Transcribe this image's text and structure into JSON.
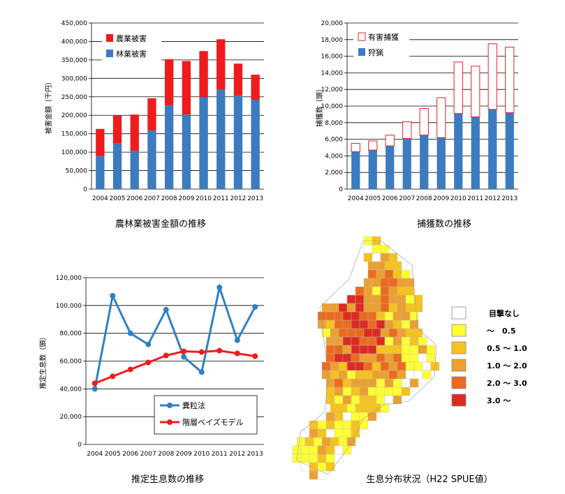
{
  "chart_data": [
    {
      "type": "bar",
      "stacked": true,
      "categories": [
        "2004",
        "2005",
        "2006",
        "2007",
        "2008",
        "2009",
        "2010",
        "2011",
        "2012",
        "2013"
      ],
      "series": [
        {
          "name": "林業被害",
          "color": "#3c7bbf",
          "values": [
            90000,
            124000,
            104000,
            159000,
            227000,
            202000,
            250000,
            269000,
            253000,
            242000
          ]
        },
        {
          "name": "農業被害",
          "color": "#ee1c1c",
          "values": [
            73000,
            75000,
            98000,
            87000,
            125000,
            145000,
            124000,
            137000,
            87000,
            68000
          ]
        }
      ],
      "legend_order": [
        "農業被害",
        "林業被害"
      ],
      "ylim": [
        0,
        450000
      ],
      "yticks": [
        "0",
        "50,000",
        "100,000",
        "150,000",
        "200,000",
        "250,000",
        "300,000",
        "350,000",
        "400,000",
        "450,000"
      ],
      "ylabel": "被害金額（千円）",
      "caption": "農林業被害金額の推移"
    },
    {
      "type": "bar",
      "stacked": true,
      "categories": [
        "2004",
        "2005",
        "2006",
        "2007",
        "2008",
        "2009",
        "2010",
        "2011",
        "2012",
        "2013"
      ],
      "series": [
        {
          "name": "狩猟",
          "color": "#3c7bbf",
          "values": [
            4500,
            4700,
            5200,
            6100,
            6500,
            6200,
            9100,
            8700,
            9600,
            9200
          ]
        },
        {
          "name": "有害捕獲",
          "color": "#ffffff",
          "stroke": "#ee1c1c",
          "values": [
            1000,
            1100,
            1300,
            2000,
            3200,
            4800,
            6200,
            6100,
            7900,
            7900
          ]
        }
      ],
      "legend_order": [
        "有害捕獲",
        "狩猟"
      ],
      "ylim": [
        0,
        20000
      ],
      "yticks": [
        "0",
        "2,000",
        "4,000",
        "6,000",
        "8,000",
        "10,000",
        "12,000",
        "14,000",
        "16,000",
        "18,000",
        "20,000"
      ],
      "ylabel": "捕獲数（頭）",
      "caption": "捕獲数の推移"
    },
    {
      "type": "line",
      "categories": [
        "2004",
        "2005",
        "2006",
        "2007",
        "2008",
        "2009",
        "2010",
        "2011",
        "2012",
        "2013"
      ],
      "series": [
        {
          "name": "糞粒法",
          "color": "#2f80c4",
          "values": [
            40000,
            107000,
            80000,
            72000,
            97000,
            63000,
            52000,
            113000,
            75000,
            99000
          ]
        },
        {
          "name": "階層ベイズモデル",
          "color": "#ee1c1c",
          "values": [
            44000,
            49000,
            54000,
            59000,
            64000,
            67000,
            66500,
            67500,
            65500,
            63500
          ]
        }
      ],
      "ylim": [
        0,
        120000
      ],
      "yticks": [
        "0",
        "20,000",
        "40,000",
        "60,000",
        "80,000",
        "100,000",
        "120,000"
      ],
      "ylabel": "推定生息数（頭）",
      "caption": "推定生息数の推移"
    }
  ],
  "map": {
    "caption": "生息分布状況（H22 SPUE値）",
    "legend": [
      {
        "label": "目撃なし",
        "color": "#ffffff"
      },
      {
        "label": "～　0.5",
        "color": "#ffff33"
      },
      {
        "label": "0.5 ～ 1.0",
        "color": "#f7c21e"
      },
      {
        "label": "1.0 ～ 2.0",
        "color": "#eba030"
      },
      {
        "label": "2.0 ～ 3.0",
        "color": "#ec6a1e"
      },
      {
        "label": "3.0 ～",
        "color": "#dd2b22"
      }
    ]
  }
}
